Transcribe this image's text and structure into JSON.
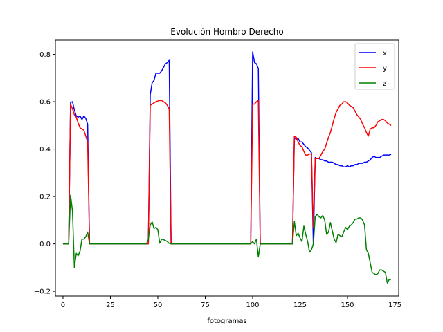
{
  "chart_data": {
    "type": "line",
    "title": "Evolución Hombro Derecho",
    "xlabel": "fotogramas",
    "ylabel": "",
    "xlim": [
      -4,
      177
    ],
    "ylim": [
      -0.22,
      0.86
    ],
    "xticks": [
      0,
      25,
      50,
      75,
      100,
      125,
      150,
      175
    ],
    "yticks": [
      -0.2,
      0.0,
      0.2,
      0.4,
      0.6,
      0.8
    ],
    "xtick_labels": [
      "0",
      "25",
      "50",
      "75",
      "100",
      "125",
      "150",
      "175"
    ],
    "ytick_labels": [
      "−0.2",
      "0.0",
      "0.2",
      "0.4",
      "0.6",
      "0.8"
    ],
    "grid": false,
    "legend_position": "top-right",
    "series": [
      {
        "name": "x",
        "color": "#0000ff",
        "points": [
          [
            0,
            0
          ],
          [
            1,
            0
          ],
          [
            2,
            0
          ],
          [
            3,
            0
          ],
          [
            4,
            0.597
          ],
          [
            5,
            0.6
          ],
          [
            6,
            0.565
          ],
          [
            7,
            0.54
          ],
          [
            8,
            0.535
          ],
          [
            9,
            0.54
          ],
          [
            10,
            0.525
          ],
          [
            11,
            0.54
          ],
          [
            12,
            0.53
          ],
          [
            13,
            0.505
          ],
          [
            14,
            0
          ],
          [
            15,
            0
          ],
          [
            20,
            0
          ],
          [
            30,
            0
          ],
          [
            40,
            0
          ],
          [
            44,
            0
          ],
          [
            45,
            0
          ],
          [
            46,
            0.63
          ],
          [
            47,
            0.68
          ],
          [
            48,
            0.69
          ],
          [
            49,
            0.72
          ],
          [
            50,
            0.72
          ],
          [
            51,
            0.72
          ],
          [
            52,
            0.73
          ],
          [
            53,
            0.745
          ],
          [
            54,
            0.76
          ],
          [
            55,
            0.765
          ],
          [
            56,
            0.775
          ],
          [
            57,
            0
          ],
          [
            60,
            0
          ],
          [
            70,
            0
          ],
          [
            80,
            0
          ],
          [
            90,
            0
          ],
          [
            98,
            0
          ],
          [
            99,
            0
          ],
          [
            100,
            0.81
          ],
          [
            101,
            0.765
          ],
          [
            102,
            0.76
          ],
          [
            103,
            0.74
          ],
          [
            104,
            0
          ],
          [
            105,
            0
          ],
          [
            110,
            0
          ],
          [
            120,
            0
          ],
          [
            121,
            0
          ],
          [
            122,
            0.45
          ],
          [
            123,
            0.44
          ],
          [
            124,
            0.445
          ],
          [
            125,
            0.43
          ],
          [
            126,
            0.43
          ],
          [
            127,
            0.42
          ],
          [
            128,
            0.41
          ],
          [
            129,
            0.405
          ],
          [
            130,
            0.395
          ],
          [
            131,
            0.385
          ],
          [
            132,
            0
          ],
          [
            133,
            0.365
          ],
          [
            134,
            0.36
          ],
          [
            135,
            0.36
          ],
          [
            136,
            0.355
          ],
          [
            137,
            0.355
          ],
          [
            138,
            0.35
          ],
          [
            139,
            0.35
          ],
          [
            140,
            0.345
          ],
          [
            141,
            0.345
          ],
          [
            142,
            0.345
          ],
          [
            143,
            0.34
          ],
          [
            144,
            0.335
          ],
          [
            145,
            0.335
          ],
          [
            146,
            0.33
          ],
          [
            147,
            0.33
          ],
          [
            148,
            0.325
          ],
          [
            149,
            0.325
          ],
          [
            150,
            0.33
          ],
          [
            151,
            0.325
          ],
          [
            152,
            0.33
          ],
          [
            153,
            0.33
          ],
          [
            154,
            0.335
          ],
          [
            155,
            0.335
          ],
          [
            156,
            0.34
          ],
          [
            157,
            0.34
          ],
          [
            158,
            0.34
          ],
          [
            159,
            0.345
          ],
          [
            160,
            0.345
          ],
          [
            161,
            0.35
          ],
          [
            162,
            0.355
          ],
          [
            163,
            0.365
          ],
          [
            164,
            0.37
          ],
          [
            165,
            0.365
          ],
          [
            166,
            0.365
          ],
          [
            167,
            0.365
          ],
          [
            168,
            0.37
          ],
          [
            169,
            0.375
          ],
          [
            170,
            0.375
          ],
          [
            171,
            0.375
          ],
          [
            172,
            0.375
          ],
          [
            173,
            0.378
          ]
        ]
      },
      {
        "name": "y",
        "color": "#ff0000",
        "points": [
          [
            0,
            0
          ],
          [
            1,
            0
          ],
          [
            2,
            0
          ],
          [
            3,
            0
          ],
          [
            4,
            0.59
          ],
          [
            5,
            0.57
          ],
          [
            6,
            0.545
          ],
          [
            7,
            0.535
          ],
          [
            8,
            0.51
          ],
          [
            9,
            0.49
          ],
          [
            10,
            0.485
          ],
          [
            11,
            0.48
          ],
          [
            12,
            0.455
          ],
          [
            13,
            0.43
          ],
          [
            14,
            0
          ],
          [
            15,
            0
          ],
          [
            20,
            0
          ],
          [
            30,
            0
          ],
          [
            40,
            0
          ],
          [
            44,
            0
          ],
          [
            45,
            0
          ],
          [
            46,
            0.585
          ],
          [
            47,
            0.59
          ],
          [
            48,
            0.595
          ],
          [
            49,
            0.6
          ],
          [
            50,
            0.603
          ],
          [
            51,
            0.605
          ],
          [
            52,
            0.605
          ],
          [
            53,
            0.6
          ],
          [
            54,
            0.595
          ],
          [
            55,
            0.585
          ],
          [
            56,
            0.57
          ],
          [
            57,
            0
          ],
          [
            60,
            0
          ],
          [
            70,
            0
          ],
          [
            80,
            0
          ],
          [
            90,
            0
          ],
          [
            98,
            0
          ],
          [
            99,
            0
          ],
          [
            100,
            0.59
          ],
          [
            101,
            0.59
          ],
          [
            102,
            0.6
          ],
          [
            103,
            0.605
          ],
          [
            104,
            0
          ],
          [
            105,
            0
          ],
          [
            110,
            0
          ],
          [
            120,
            0
          ],
          [
            121,
            0
          ],
          [
            122,
            0.455
          ],
          [
            123,
            0.45
          ],
          [
            124,
            0.43
          ],
          [
            125,
            0.415
          ],
          [
            126,
            0.41
          ],
          [
            127,
            0.39
          ],
          [
            128,
            0.375
          ],
          [
            129,
            0.375
          ],
          [
            130,
            0.38
          ],
          [
            131,
            0.38
          ],
          [
            132,
            0.07
          ],
          [
            133,
            0.36
          ],
          [
            134,
            0.36
          ],
          [
            135,
            0.36
          ],
          [
            136,
            0.375
          ],
          [
            137,
            0.39
          ],
          [
            138,
            0.4
          ],
          [
            139,
            0.425
          ],
          [
            140,
            0.45
          ],
          [
            141,
            0.47
          ],
          [
            142,
            0.5
          ],
          [
            143,
            0.53
          ],
          [
            144,
            0.555
          ],
          [
            145,
            0.57
          ],
          [
            146,
            0.585
          ],
          [
            147,
            0.59
          ],
          [
            148,
            0.6
          ],
          [
            149,
            0.6
          ],
          [
            150,
            0.595
          ],
          [
            151,
            0.585
          ],
          [
            152,
            0.58
          ],
          [
            153,
            0.575
          ],
          [
            154,
            0.56
          ],
          [
            155,
            0.545
          ],
          [
            156,
            0.535
          ],
          [
            157,
            0.525
          ],
          [
            158,
            0.505
          ],
          [
            159,
            0.49
          ],
          [
            160,
            0.47
          ],
          [
            161,
            0.455
          ],
          [
            162,
            0.485
          ],
          [
            163,
            0.49
          ],
          [
            164,
            0.49
          ],
          [
            165,
            0.5
          ],
          [
            166,
            0.515
          ],
          [
            167,
            0.52
          ],
          [
            168,
            0.525
          ],
          [
            169,
            0.525
          ],
          [
            170,
            0.52
          ],
          [
            171,
            0.51
          ],
          [
            172,
            0.505
          ],
          [
            173,
            0.5
          ]
        ]
      },
      {
        "name": "z",
        "color": "#008000",
        "points": [
          [
            0,
            0
          ],
          [
            1,
            0
          ],
          [
            2,
            0
          ],
          [
            3,
            0
          ],
          [
            4,
            0.205
          ],
          [
            5,
            0.14
          ],
          [
            6,
            -0.1
          ],
          [
            7,
            -0.04
          ],
          [
            8,
            -0.05
          ],
          [
            9,
            -0.03
          ],
          [
            10,
            0.02
          ],
          [
            11,
            0.02
          ],
          [
            12,
            0.03
          ],
          [
            13,
            0.05
          ],
          [
            14,
            0
          ],
          [
            15,
            0
          ],
          [
            20,
            0
          ],
          [
            30,
            0
          ],
          [
            40,
            0
          ],
          [
            44,
            0
          ],
          [
            45,
            0.02
          ],
          [
            46,
            0.08
          ],
          [
            47,
            0.093
          ],
          [
            48,
            0.065
          ],
          [
            49,
            0.07
          ],
          [
            50,
            0.06
          ],
          [
            51,
            0.003
          ],
          [
            52,
            0.02
          ],
          [
            53,
            0.018
          ],
          [
            54,
            0.014
          ],
          [
            55,
            0.01
          ],
          [
            56,
            0.002
          ],
          [
            57,
            0
          ],
          [
            60,
            0
          ],
          [
            70,
            0
          ],
          [
            80,
            0
          ],
          [
            90,
            0
          ],
          [
            98,
            0
          ],
          [
            99,
            0
          ],
          [
            100,
            0.01
          ],
          [
            101,
            0
          ],
          [
            102,
            0.02
          ],
          [
            103,
            -0.055
          ],
          [
            104,
            0
          ],
          [
            105,
            0
          ],
          [
            110,
            0
          ],
          [
            120,
            0
          ],
          [
            121,
            0
          ],
          [
            122,
            0.095
          ],
          [
            123,
            0.035
          ],
          [
            124,
            0.045
          ],
          [
            125,
            0.025
          ],
          [
            126,
            0.01
          ],
          [
            127,
            0.075
          ],
          [
            128,
            0.04
          ],
          [
            129,
            0.01
          ],
          [
            130,
            -0.035
          ],
          [
            131,
            -0.025
          ],
          [
            132,
            0
          ],
          [
            133,
            0.115
          ],
          [
            134,
            0.125
          ],
          [
            135,
            0.115
          ],
          [
            136,
            0.11
          ],
          [
            137,
            0.12
          ],
          [
            138,
            0.1
          ],
          [
            139,
            0.04
          ],
          [
            140,
            0.05
          ],
          [
            141,
            0.09
          ],
          [
            142,
            0.055
          ],
          [
            143,
            0.02
          ],
          [
            144,
            0.005
          ],
          [
            145,
            0.04
          ],
          [
            146,
            0.035
          ],
          [
            147,
            0.03
          ],
          [
            148,
            0.05
          ],
          [
            149,
            0.07
          ],
          [
            150,
            0.06
          ],
          [
            151,
            0.075
          ],
          [
            152,
            0.08
          ],
          [
            153,
            0.09
          ],
          [
            154,
            0.105
          ],
          [
            155,
            0.105
          ],
          [
            156,
            0.11
          ],
          [
            157,
            0.11
          ],
          [
            158,
            0.1
          ],
          [
            159,
            0.08
          ],
          [
            160,
            -0.025
          ],
          [
            161,
            -0.04
          ],
          [
            162,
            -0.08
          ],
          [
            163,
            -0.12
          ],
          [
            164,
            -0.125
          ],
          [
            165,
            -0.13
          ],
          [
            166,
            -0.125
          ],
          [
            167,
            -0.11
          ],
          [
            168,
            -0.11
          ],
          [
            169,
            -0.115
          ],
          [
            170,
            -0.12
          ],
          [
            171,
            -0.165
          ],
          [
            172,
            -0.15
          ],
          [
            173,
            -0.15
          ]
        ]
      }
    ]
  }
}
